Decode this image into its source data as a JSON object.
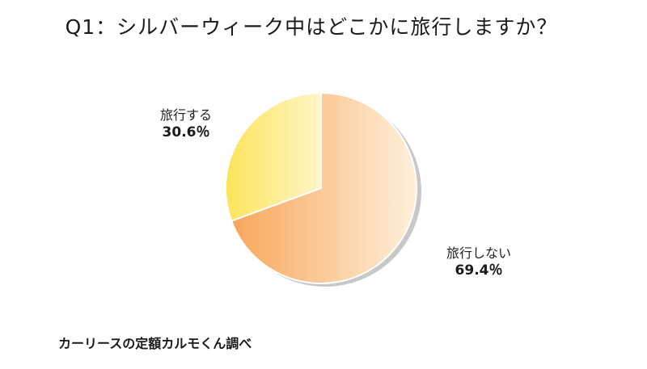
{
  "title": "Q1：シルバーウィーク中はどこかに旅行しますか？",
  "source": "カーリースの定額カルモくん調べ",
  "chart_data": {
    "type": "pie",
    "title": "Q1：シルバーウィーク中はどこかに旅行しますか？",
    "slices": [
      {
        "label": "旅行する",
        "value": 30.6,
        "value_label": "30.6％",
        "color": "#fde66a"
      },
      {
        "label": "旅行しない",
        "value": 69.4,
        "value_label": "69.4％",
        "color": "#f8b36a"
      }
    ],
    "legend": "none",
    "start_angle": "12 o'clock",
    "direction": "counterclockwise for 旅行する"
  }
}
